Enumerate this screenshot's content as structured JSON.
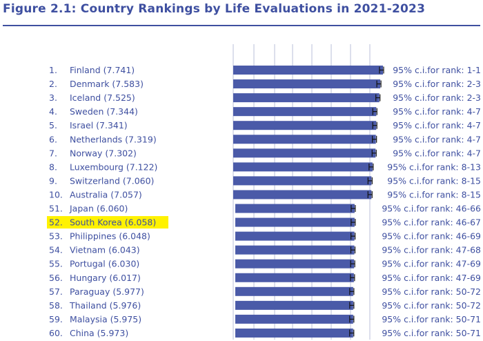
{
  "chart_data": {
    "type": "bar",
    "orientation": "horizontal",
    "title": "Figure 2.1: Country Rankings by Life Evaluations in 2021-2023",
    "highlighted": "South Korea",
    "bar_color": "#4a5aa8",
    "title_color": "#3e4fa0",
    "highlight_color": "#fff200",
    "xlim": [
      0,
      8
    ],
    "rows": [
      {
        "rank": "1.",
        "country": "Finland",
        "value": 7.741,
        "label": "Finland (7.741)",
        "ci": "95% c.i.for rank: 1-1"
      },
      {
        "rank": "2.",
        "country": "Denmark",
        "value": 7.583,
        "label": "Denmark (7.583)",
        "ci": "95% c.i.for rank: 2-3"
      },
      {
        "rank": "3.",
        "country": "Iceland",
        "value": 7.525,
        "label": "Iceland (7.525)",
        "ci": "95% c.i.for rank: 2-3"
      },
      {
        "rank": "4.",
        "country": "Sweden",
        "value": 7.344,
        "label": "Sweden (7.344)",
        "ci": "95% c.i.for rank: 4-7"
      },
      {
        "rank": "5.",
        "country": "Israel",
        "value": 7.341,
        "label": "Israel (7.341)",
        "ci": "95% c.i.for rank: 4-7"
      },
      {
        "rank": "6.",
        "country": "Netherlands",
        "value": 7.319,
        "label": "Netherlands (7.319)",
        "ci": "95% c.i.for rank: 4-7"
      },
      {
        "rank": "7.",
        "country": "Norway",
        "value": 7.302,
        "label": "Norway (7.302)",
        "ci": "95% c.i.for rank: 4-7"
      },
      {
        "rank": "8.",
        "country": "Luxembourg",
        "value": 7.122,
        "label": "Luxembourg (7.122)",
        "ci": "95% c.i.for rank: 8-13"
      },
      {
        "rank": "9.",
        "country": "Switzerland",
        "value": 7.06,
        "label": "Switzerland (7.060)",
        "ci": "95% c.i.for rank: 8-15"
      },
      {
        "rank": "10.",
        "country": "Australia",
        "value": 7.057,
        "label": "Australia (7.057)",
        "ci": "95% c.i.for rank: 8-15"
      },
      {
        "rank": "51.",
        "country": "Japan",
        "value": 6.06,
        "label": "Japan (6.060)",
        "ci": "95% c.i.for rank: 46-66"
      },
      {
        "rank": "52.",
        "country": "South Korea",
        "value": 6.058,
        "label": "South Korea (6.058)",
        "ci": "95% c.i.for rank: 46-67"
      },
      {
        "rank": "53.",
        "country": "Philippines",
        "value": 6.048,
        "label": "Philippines (6.048)",
        "ci": "95% c.i.for rank: 46-69"
      },
      {
        "rank": "54.",
        "country": "Vietnam",
        "value": 6.043,
        "label": "Vietnam (6.043)",
        "ci": "95% c.i.for rank: 47-68"
      },
      {
        "rank": "55.",
        "country": "Portugal",
        "value": 6.03,
        "label": "Portugal (6.030)",
        "ci": "95% c.i.for rank: 47-69"
      },
      {
        "rank": "56.",
        "country": "Hungary",
        "value": 6.017,
        "label": "Hungary (6.017)",
        "ci": "95% c.i.for rank: 47-69"
      },
      {
        "rank": "57.",
        "country": "Paraguay",
        "value": 5.977,
        "label": "Paraguay (5.977)",
        "ci": "95% c.i.for rank: 50-72"
      },
      {
        "rank": "58.",
        "country": "Thailand",
        "value": 5.976,
        "label": "Thailand (5.976)",
        "ci": "95% c.i.for rank: 50-72"
      },
      {
        "rank": "59.",
        "country": "Malaysia",
        "value": 5.975,
        "label": "Malaysia (5.975)",
        "ci": "95% c.i.for rank: 50-71"
      },
      {
        "rank": "60.",
        "country": "China",
        "value": 5.973,
        "label": "China (5.973)",
        "ci": "95% c.i.for rank: 50-71"
      }
    ]
  }
}
